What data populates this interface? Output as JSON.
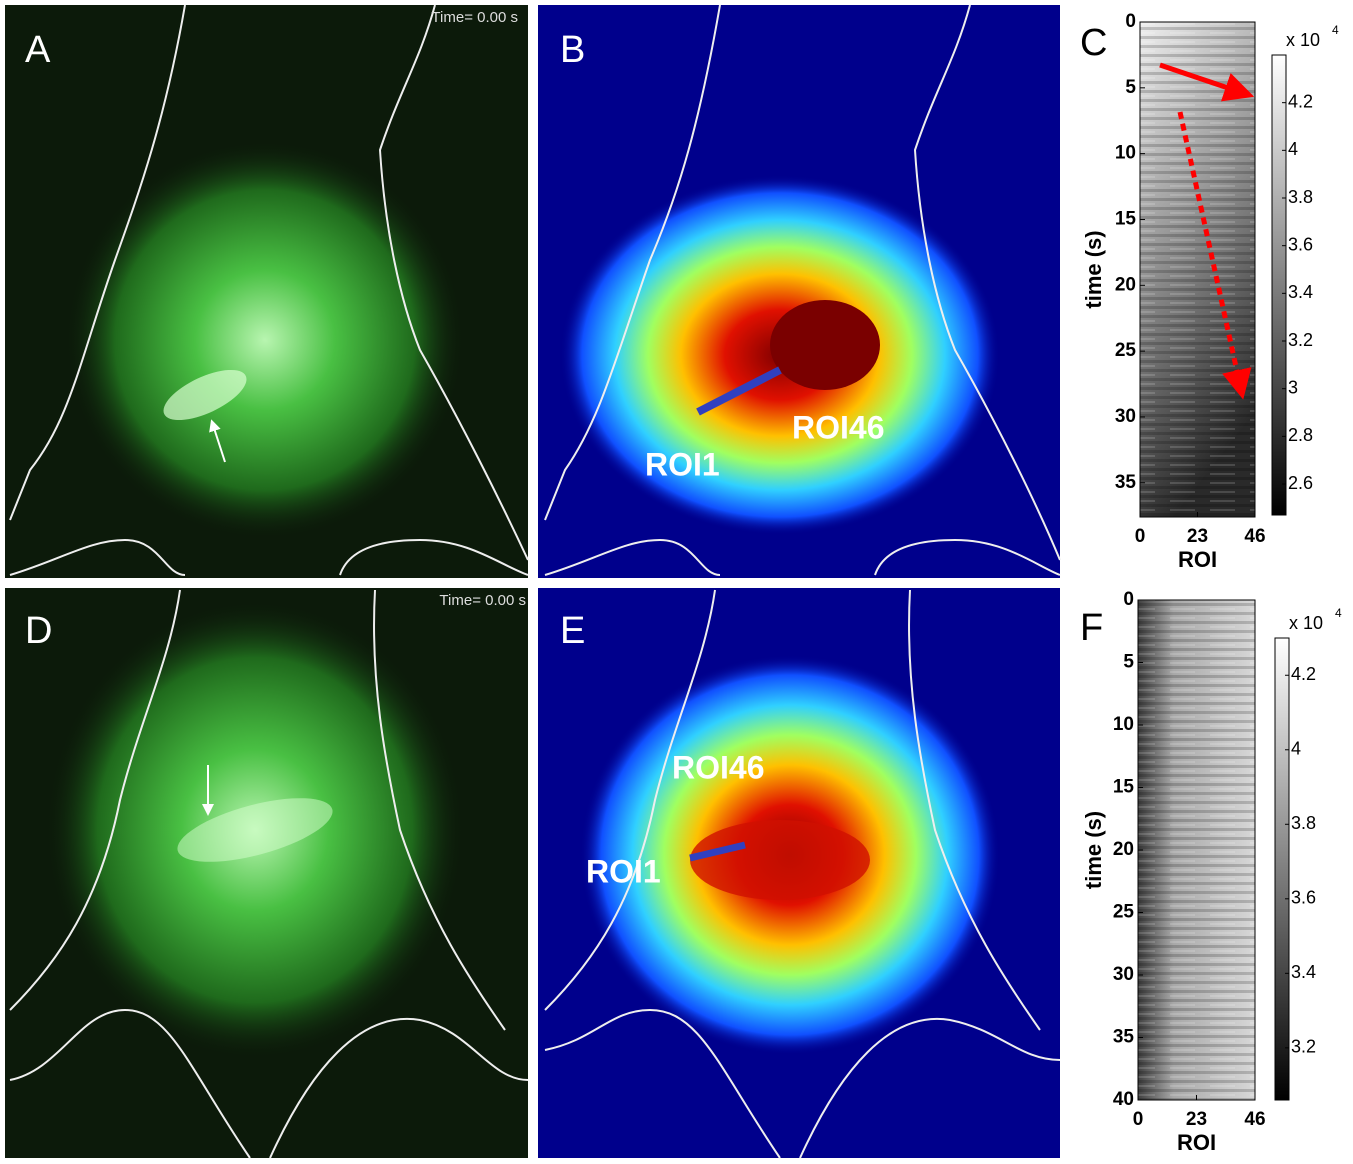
{
  "panels": [
    {
      "label": "A",
      "timestamp": "Time= 0.00 s"
    },
    {
      "label": "B",
      "roi_start": "ROI1",
      "roi_end": "ROI46"
    },
    {
      "label": "D",
      "timestamp": "Time= 0.00 s"
    },
    {
      "label": "E",
      "roi_start": "ROI1",
      "roi_end": "ROI46"
    }
  ],
  "chart_data": [
    {
      "type": "kymograph",
      "label": "C",
      "ylabel": "time (s)",
      "xlabel": "ROI",
      "xlim": [
        0,
        46
      ],
      "xticks": [
        0,
        23,
        46
      ],
      "ylim": [
        0,
        37.6
      ],
      "yticks": [
        0,
        5,
        10,
        15,
        20,
        25,
        30,
        35
      ],
      "colorbar": {
        "multiplier": "x 10",
        "exponent": "4",
        "ylim": [
          2.47,
          4.4
        ],
        "yticks": [
          2.6,
          2.8,
          3,
          3.2,
          3.4,
          3.6,
          3.8,
          4,
          4.2
        ]
      }
    },
    {
      "type": "kymograph",
      "label": "F",
      "ylabel": "time (s)",
      "xlabel": "ROI",
      "xlim": [
        0,
        46
      ],
      "xticks": [
        0,
        23,
        46
      ],
      "ylim": [
        0,
        40
      ],
      "yticks": [
        0,
        5,
        10,
        15,
        20,
        25,
        30,
        35,
        40
      ],
      "colorbar": {
        "multiplier": "x 10",
        "exponent": "4",
        "ylim": [
          3.06,
          4.3
        ],
        "yticks": [
          3.2,
          3.4,
          3.6,
          3.8,
          4,
          4.2
        ]
      }
    }
  ]
}
